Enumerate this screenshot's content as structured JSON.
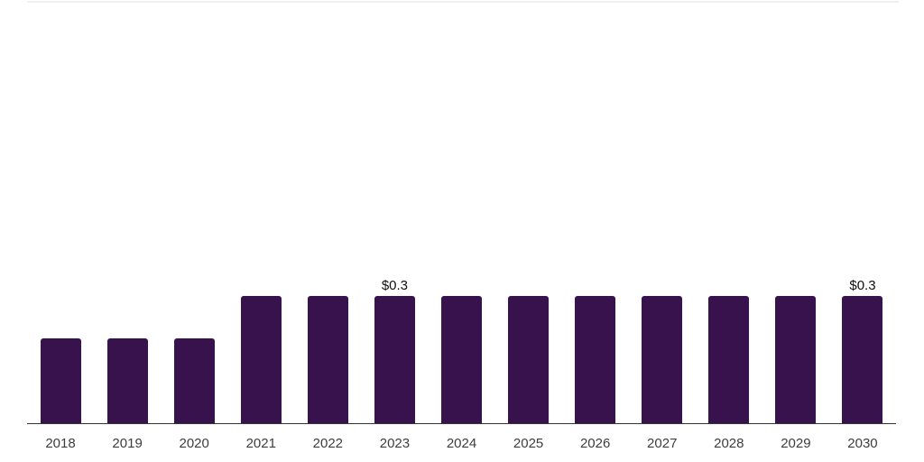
{
  "chart_data": {
    "type": "bar",
    "title": "",
    "xlabel": "",
    "ylabel": "",
    "categories": [
      "2018",
      "2019",
      "2020",
      "2021",
      "2022",
      "2023",
      "2024",
      "2025",
      "2026",
      "2027",
      "2028",
      "2029",
      "2030"
    ],
    "values": [
      0.2,
      0.2,
      0.2,
      0.3,
      0.3,
      0.3,
      0.3,
      0.3,
      0.3,
      0.3,
      0.3,
      0.3,
      0.3
    ],
    "data_labels": {
      "2023": "$0.3",
      "2030": "$0.3"
    },
    "ylim": [
      0,
      1.0
    ],
    "grid": "off",
    "legend": "none",
    "colors": {
      "bar": "#37124d",
      "axis_line": "#333333",
      "tick_label": "#3d3d3d",
      "value_label": "#0f0f0f",
      "top_rule": "#f0f0f0",
      "background": "#ffffff"
    }
  }
}
